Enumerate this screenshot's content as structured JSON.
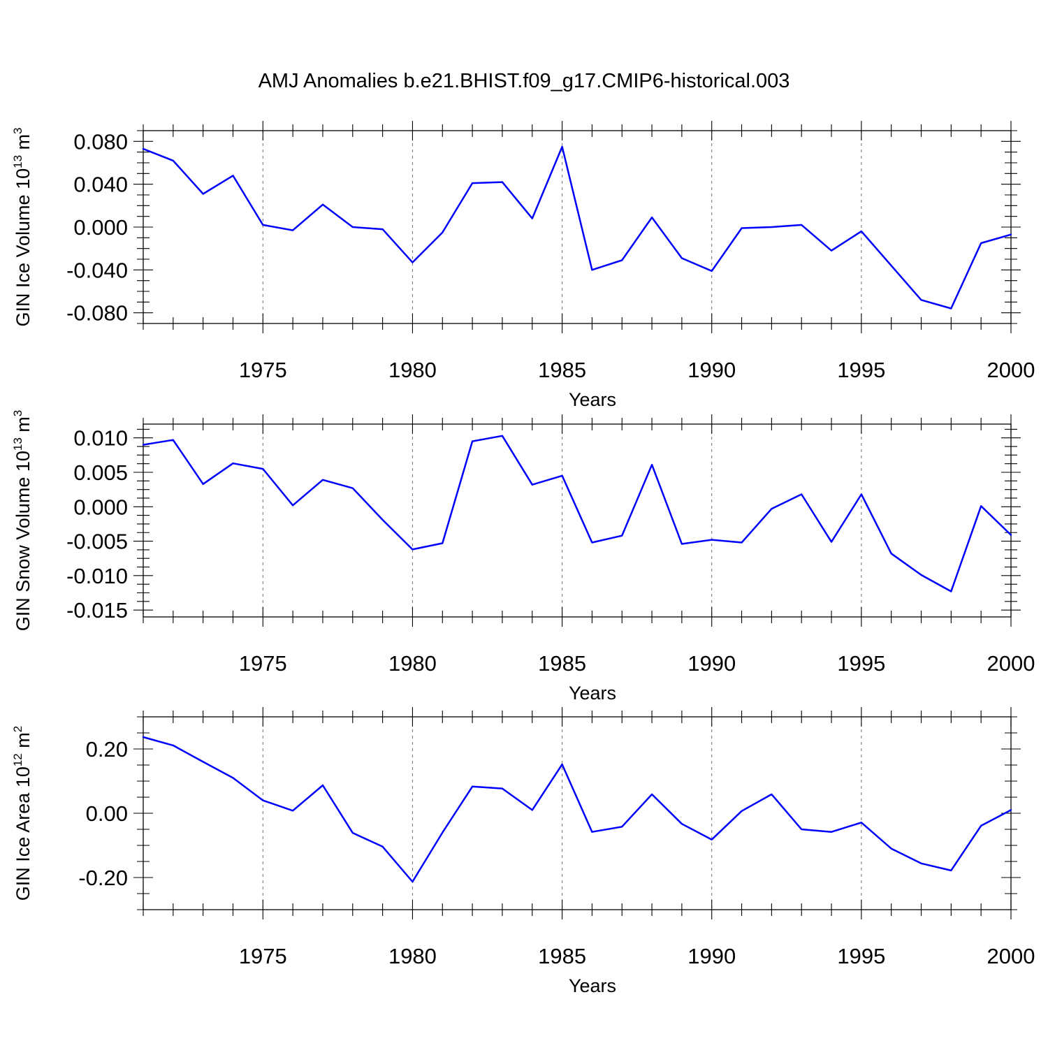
{
  "title": "AMJ Anomalies b.e21.BHIST.f09_g17.CMIP6-historical.003",
  "colors": {
    "line": "#0000ff",
    "frame": "#000000",
    "grid": "#7a7a7a"
  },
  "chart_data": [
    {
      "type": "line",
      "ylabel": "GIN Ice Volume 10",
      "ylabel_exp": "13",
      "ylabel_unit": "m",
      "ylabel_unit_exp": "3",
      "xlabel": "Years",
      "xlim": [
        1971,
        2000
      ],
      "ylim": [
        -0.09,
        0.09
      ],
      "xticks": [
        1975,
        1980,
        1985,
        1990,
        1995,
        2000
      ],
      "xtick_labels": [
        "1975",
        "1980",
        "1985",
        "1990",
        "1995",
        "2000"
      ],
      "yticks": [
        0.08,
        0.04,
        0.0,
        -0.04,
        -0.08
      ],
      "ytick_labels": [
        "0.080",
        "0.040",
        "0.000",
        "-0.040",
        "-0.080"
      ],
      "grid": "vertical dashed at major x ticks",
      "x": [
        1971,
        1972,
        1973,
        1974,
        1975,
        1976,
        1977,
        1978,
        1979,
        1980,
        1981,
        1982,
        1983,
        1984,
        1985,
        1986,
        1987,
        1988,
        1989,
        1990,
        1991,
        1992,
        1993,
        1994,
        1995,
        1996,
        1997,
        1998,
        1999,
        2000
      ],
      "y": [
        0.073,
        0.062,
        0.031,
        0.048,
        0.002,
        -0.003,
        0.021,
        0.0,
        -0.002,
        -0.033,
        -0.005,
        0.041,
        0.042,
        0.008,
        0.075,
        -0.04,
        -0.031,
        0.009,
        -0.029,
        -0.041,
        -0.001,
        0.0,
        0.002,
        -0.022,
        -0.004,
        -0.036,
        -0.068,
        -0.076,
        -0.015,
        -0.007
      ]
    },
    {
      "type": "line",
      "ylabel": "GIN Snow Volume 10",
      "ylabel_exp": "13",
      "ylabel_unit": "m",
      "ylabel_unit_exp": "3",
      "xlabel": "Years",
      "xlim": [
        1971,
        2000
      ],
      "ylim": [
        -0.016,
        0.012
      ],
      "xticks": [
        1975,
        1980,
        1985,
        1990,
        1995,
        2000
      ],
      "xtick_labels": [
        "1975",
        "1980",
        "1985",
        "1990",
        "1995",
        "2000"
      ],
      "yticks": [
        0.01,
        0.005,
        0.0,
        -0.005,
        -0.01,
        -0.015
      ],
      "ytick_labels": [
        "0.010",
        "0.005",
        "0.000",
        "-0.005",
        "-0.010",
        "-0.015"
      ],
      "grid": "vertical dashed at major x ticks",
      "x": [
        1971,
        1972,
        1973,
        1974,
        1975,
        1976,
        1977,
        1978,
        1979,
        1980,
        1981,
        1982,
        1983,
        1984,
        1985,
        1986,
        1987,
        1988,
        1989,
        1990,
        1991,
        1992,
        1993,
        1994,
        1995,
        1996,
        1997,
        1998,
        1999,
        2000
      ],
      "y": [
        0.009,
        0.0097,
        0.0033,
        0.0063,
        0.0055,
        0.0002,
        0.0039,
        0.0027,
        -0.0019,
        -0.0062,
        -0.0053,
        0.0095,
        0.0103,
        0.0032,
        0.0045,
        -0.0052,
        -0.0042,
        0.0061,
        -0.0054,
        -0.0048,
        -0.0052,
        -0.0003,
        0.0018,
        -0.0051,
        0.0018,
        -0.0068,
        -0.0099,
        -0.0123,
        0.0001,
        -0.0041
      ]
    },
    {
      "type": "line",
      "ylabel": "GIN Ice Area 10",
      "ylabel_exp": "12",
      "ylabel_unit": "m",
      "ylabel_unit_exp": "2",
      "xlabel": "Years",
      "xlim": [
        1971,
        2000
      ],
      "ylim": [
        -0.3,
        0.3
      ],
      "xticks": [
        1975,
        1980,
        1985,
        1990,
        1995,
        2000
      ],
      "xtick_labels": [
        "1975",
        "1980",
        "1985",
        "1990",
        "1995",
        "2000"
      ],
      "yticks": [
        0.2,
        0.0,
        -0.2
      ],
      "ytick_labels": [
        "0.20",
        "0.00",
        "-0.20"
      ],
      "grid": "vertical dashed at major x ticks",
      "x": [
        1971,
        1972,
        1973,
        1974,
        1975,
        1976,
        1977,
        1978,
        1979,
        1980,
        1981,
        1982,
        1983,
        1984,
        1985,
        1986,
        1987,
        1988,
        1989,
        1990,
        1991,
        1992,
        1993,
        1994,
        1995,
        1996,
        1997,
        1998,
        1999,
        2000
      ],
      "y": [
        0.237,
        0.211,
        0.16,
        0.11,
        0.04,
        0.008,
        0.087,
        -0.061,
        -0.104,
        -0.213,
        -0.06,
        0.083,
        0.077,
        0.01,
        0.152,
        -0.058,
        -0.042,
        0.059,
        -0.033,
        -0.082,
        0.007,
        0.059,
        -0.05,
        -0.058,
        -0.029,
        -0.11,
        -0.156,
        -0.178,
        -0.039,
        0.01
      ]
    }
  ]
}
